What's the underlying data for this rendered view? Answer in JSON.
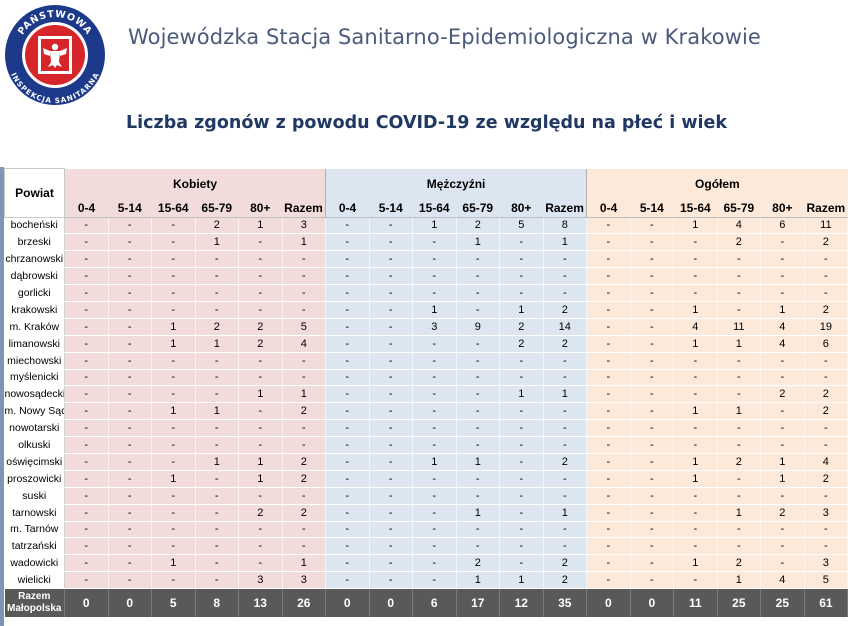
{
  "header": {
    "org_name": "Wojewódzka Stacja Sanitarno-Epidemiologiczna w Krakowie",
    "logo": {
      "top_text": "PAŃSTWOWA",
      "bottom_text": "INSPEKCJA SANITARNA",
      "icon": "white-eagle-emblem-icon",
      "colors": {
        "ring": "#1d3a8a",
        "inner": "#d7262b"
      }
    }
  },
  "title": "Liczba zgonów z powodu COVID-19 ze względu na płeć i wiek",
  "table": {
    "powiat_header": "Powiat",
    "groups": [
      "Kobiety",
      "Mężczyźni",
      "Ogółem"
    ],
    "age_columns": [
      "0-4",
      "5-14",
      "15-64",
      "65-79",
      "80+",
      "Razem"
    ],
    "rows": [
      {
        "name": "bocheński",
        "k": [
          "-",
          "-",
          "-",
          "2",
          "1",
          "3"
        ],
        "m": [
          "-",
          "-",
          "1",
          "2",
          "5",
          "8"
        ],
        "o": [
          "-",
          "-",
          "1",
          "4",
          "6",
          "11"
        ]
      },
      {
        "name": "brzeski",
        "k": [
          "-",
          "-",
          "-",
          "1",
          "-",
          "1"
        ],
        "m": [
          "-",
          "-",
          "-",
          "1",
          "-",
          "1"
        ],
        "o": [
          "-",
          "-",
          "-",
          "2",
          "-",
          "2"
        ]
      },
      {
        "name": "chrzanowski",
        "k": [
          "-",
          "-",
          "-",
          "-",
          "-",
          "-"
        ],
        "m": [
          "-",
          "-",
          "-",
          "-",
          "-",
          "-"
        ],
        "o": [
          "-",
          "-",
          "-",
          "-",
          "-",
          "-"
        ]
      },
      {
        "name": "dąbrowski",
        "k": [
          "-",
          "-",
          "-",
          "-",
          "-",
          "-"
        ],
        "m": [
          "-",
          "-",
          "-",
          "-",
          "-",
          "-"
        ],
        "o": [
          "-",
          "-",
          "-",
          "-",
          "-",
          "-"
        ]
      },
      {
        "name": "gorlicki",
        "k": [
          "-",
          "-",
          "-",
          "-",
          "-",
          "-"
        ],
        "m": [
          "-",
          "-",
          "-",
          "-",
          "-",
          "-"
        ],
        "o": [
          "-",
          "-",
          "-",
          "-",
          "-",
          "-"
        ]
      },
      {
        "name": "krakowski",
        "k": [
          "-",
          "-",
          "-",
          "-",
          "-",
          "-"
        ],
        "m": [
          "-",
          "-",
          "1",
          "-",
          "1",
          "2"
        ],
        "o": [
          "-",
          "-",
          "1",
          "-",
          "1",
          "2"
        ]
      },
      {
        "name": "m. Kraków",
        "k": [
          "-",
          "-",
          "1",
          "2",
          "2",
          "5"
        ],
        "m": [
          "-",
          "-",
          "3",
          "9",
          "2",
          "14"
        ],
        "o": [
          "-",
          "-",
          "4",
          "11",
          "4",
          "19"
        ]
      },
      {
        "name": "limanowski",
        "k": [
          "-",
          "-",
          "1",
          "1",
          "2",
          "4"
        ],
        "m": [
          "-",
          "-",
          "-",
          "-",
          "2",
          "2"
        ],
        "o": [
          "-",
          "-",
          "1",
          "1",
          "4",
          "6"
        ]
      },
      {
        "name": "miechowski",
        "k": [
          "-",
          "-",
          "-",
          "-",
          "-",
          "-"
        ],
        "m": [
          "-",
          "-",
          "-",
          "-",
          "-",
          "-"
        ],
        "o": [
          "-",
          "-",
          "-",
          "-",
          "-",
          "-"
        ]
      },
      {
        "name": "myślenicki",
        "k": [
          "-",
          "-",
          "-",
          "-",
          "-",
          "-"
        ],
        "m": [
          "-",
          "-",
          "-",
          "-",
          "-",
          "-"
        ],
        "o": [
          "-",
          "-",
          "-",
          "-",
          "-",
          "-"
        ]
      },
      {
        "name": "nowosądecki",
        "k": [
          "-",
          "-",
          "-",
          "-",
          "1",
          "1"
        ],
        "m": [
          "-",
          "-",
          "-",
          "-",
          "1",
          "1"
        ],
        "o": [
          "-",
          "-",
          "-",
          "-",
          "2",
          "2"
        ]
      },
      {
        "name": "m. Nowy Sącz",
        "k": [
          "-",
          "-",
          "1",
          "1",
          "-",
          "2"
        ],
        "m": [
          "-",
          "-",
          "-",
          "-",
          "-",
          "-"
        ],
        "o": [
          "-",
          "-",
          "1",
          "1",
          "-",
          "2"
        ]
      },
      {
        "name": "nowotarski",
        "k": [
          "-",
          "-",
          "-",
          "-",
          "-",
          "-"
        ],
        "m": [
          "-",
          "-",
          "-",
          "-",
          "-",
          "-"
        ],
        "o": [
          "-",
          "-",
          "-",
          "-",
          "-",
          "-"
        ]
      },
      {
        "name": "olkuski",
        "k": [
          "-",
          "-",
          "-",
          "-",
          "-",
          "-"
        ],
        "m": [
          "-",
          "-",
          "-",
          "-",
          "-",
          "-"
        ],
        "o": [
          "-",
          "-",
          "-",
          "-",
          "-",
          "-"
        ]
      },
      {
        "name": "oświęcimski",
        "k": [
          "-",
          "-",
          "-",
          "1",
          "1",
          "2"
        ],
        "m": [
          "-",
          "-",
          "1",
          "1",
          "-",
          "2"
        ],
        "o": [
          "-",
          "-",
          "1",
          "2",
          "1",
          "4"
        ]
      },
      {
        "name": "proszowicki",
        "k": [
          "-",
          "-",
          "1",
          "-",
          "1",
          "2"
        ],
        "m": [
          "-",
          "-",
          "-",
          "-",
          "-",
          "-"
        ],
        "o": [
          "-",
          "-",
          "1",
          "-",
          "1",
          "2"
        ]
      },
      {
        "name": "suski",
        "k": [
          "-",
          "-",
          "-",
          "-",
          "-",
          "-"
        ],
        "m": [
          "-",
          "-",
          "-",
          "-",
          "-",
          "-"
        ],
        "o": [
          "-",
          "-",
          "-",
          "-",
          "-",
          "-"
        ]
      },
      {
        "name": "tarnowski",
        "k": [
          "-",
          "-",
          "-",
          "-",
          "2",
          "2"
        ],
        "m": [
          "-",
          "-",
          "-",
          "1",
          "-",
          "1"
        ],
        "o": [
          "-",
          "-",
          "-",
          "1",
          "2",
          "3"
        ]
      },
      {
        "name": "m. Tarnów",
        "k": [
          "-",
          "-",
          "-",
          "-",
          "-",
          "-"
        ],
        "m": [
          "-",
          "-",
          "-",
          "-",
          "-",
          "-"
        ],
        "o": [
          "-",
          "-",
          "-",
          "-",
          "-",
          "-"
        ]
      },
      {
        "name": "tatrzański",
        "k": [
          "-",
          "-",
          "-",
          "-",
          "-",
          "-"
        ],
        "m": [
          "-",
          "-",
          "-",
          "-",
          "-",
          "-"
        ],
        "o": [
          "-",
          "-",
          "-",
          "-",
          "-",
          "-"
        ]
      },
      {
        "name": "wadowicki",
        "k": [
          "-",
          "-",
          "1",
          "-",
          "-",
          "1"
        ],
        "m": [
          "-",
          "-",
          "-",
          "2",
          "-",
          "2"
        ],
        "o": [
          "-",
          "-",
          "1",
          "2",
          "-",
          "3"
        ]
      },
      {
        "name": "wielicki",
        "k": [
          "-",
          "-",
          "-",
          "-",
          "3",
          "3"
        ],
        "m": [
          "-",
          "-",
          "-",
          "1",
          "1",
          "2"
        ],
        "o": [
          "-",
          "-",
          "-",
          "1",
          "4",
          "5"
        ]
      }
    ],
    "total": {
      "label_line1": "Razem",
      "label_line2": "Małopolska",
      "k": [
        "0",
        "0",
        "5",
        "8",
        "13",
        "26"
      ],
      "m": [
        "0",
        "0",
        "6",
        "17",
        "12",
        "35"
      ],
      "o": [
        "0",
        "0",
        "11",
        "25",
        "25",
        "61"
      ]
    }
  }
}
